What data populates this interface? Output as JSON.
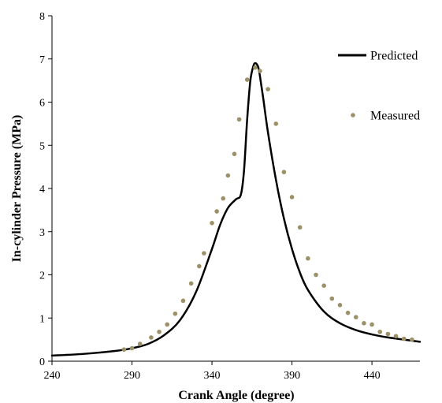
{
  "chart_data": {
    "type": "line",
    "title": "",
    "xlabel": "Crank Angle (degree)",
    "ylabel": "In-cylinder Pressure (MPa)",
    "xlim": [
      240,
      470
    ],
    "ylim": [
      0,
      8
    ],
    "xticks": [
      240,
      290,
      340,
      390,
      440
    ],
    "xtick_labels": [
      "240",
      "290",
      "340",
      "390",
      "440"
    ],
    "yticks": [
      0,
      1,
      2,
      3,
      4,
      5,
      6,
      7,
      8
    ],
    "ytick_labels": [
      "0",
      "1",
      "2",
      "3",
      "4",
      "5",
      "6",
      "7",
      "8"
    ],
    "grid": false,
    "legend_position": "top-right",
    "series": [
      {
        "name": "Predicted",
        "style": "line",
        "color": "#000000",
        "x": [
          240,
          260,
          280,
          290,
          300,
          310,
          320,
          330,
          340,
          345,
          350,
          355,
          358,
          360,
          362,
          364,
          366,
          367,
          368,
          369,
          370,
          372,
          375,
          380,
          385,
          390,
          395,
          400,
          410,
          420,
          430,
          440,
          450,
          460,
          470
        ],
        "y": [
          0.13,
          0.17,
          0.24,
          0.3,
          0.4,
          0.6,
          0.95,
          1.6,
          2.6,
          3.15,
          3.55,
          3.75,
          3.85,
          4.4,
          5.6,
          6.5,
          6.85,
          6.9,
          6.88,
          6.8,
          6.6,
          6.1,
          5.3,
          4.2,
          3.3,
          2.6,
          2.05,
          1.65,
          1.15,
          0.88,
          0.72,
          0.62,
          0.55,
          0.5,
          0.45
        ]
      },
      {
        "name": "Measured",
        "style": "scatter",
        "color": "#9b9068",
        "x": [
          285,
          290,
          295,
          302,
          307,
          312,
          317,
          322,
          327,
          332,
          335,
          340,
          343,
          347,
          350,
          354,
          357,
          362,
          367,
          370,
          375,
          380,
          385,
          390,
          395,
          400,
          405,
          410,
          415,
          420,
          425,
          430,
          435,
          440,
          445,
          450,
          455,
          460,
          465
        ],
        "y": [
          0.27,
          0.3,
          0.4,
          0.55,
          0.68,
          0.85,
          1.1,
          1.4,
          1.8,
          2.2,
          2.5,
          3.2,
          3.47,
          3.77,
          4.3,
          4.8,
          5.6,
          6.52,
          6.8,
          6.72,
          6.3,
          5.5,
          4.38,
          3.8,
          3.1,
          2.38,
          2.0,
          1.75,
          1.45,
          1.3,
          1.12,
          1.02,
          0.88,
          0.85,
          0.68,
          0.63,
          0.58,
          0.52,
          0.5
        ]
      }
    ]
  }
}
